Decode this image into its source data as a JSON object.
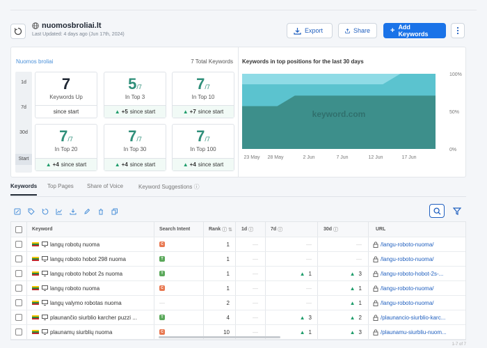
{
  "header": {
    "site": "nuomosbroliai.lt",
    "updated": "Last Updated: 4 days ago (Jun 17th, 2024)",
    "export_label": "Export",
    "share_label": "Share",
    "add_label": "Add Keywords"
  },
  "stats": {
    "domain": "Nuomos broliai",
    "total": "7 Total Keywords",
    "periods": [
      "1d",
      "7d",
      "30d",
      "Start"
    ],
    "cards": [
      {
        "value": "7",
        "frac": "",
        "label": "Keywords Up",
        "foot_delta": "",
        "foot_text": "since start"
      },
      {
        "value": "5",
        "frac": "/7",
        "label": "In Top 3",
        "foot_delta": "+5",
        "foot_text": "since start"
      },
      {
        "value": "7",
        "frac": "/7",
        "label": "In Top 10",
        "foot_delta": "+7",
        "foot_text": "since start"
      },
      {
        "value": "7",
        "frac": "/7",
        "label": "In Top 20",
        "foot_delta": "+4",
        "foot_text": "since start"
      },
      {
        "value": "7",
        "frac": "/7",
        "label": "In Top 30",
        "foot_delta": "+4",
        "foot_text": "since start"
      },
      {
        "value": "7",
        "frac": "/7",
        "label": "In Top 100",
        "foot_delta": "+4",
        "foot_text": "since start"
      }
    ]
  },
  "chart": {
    "title": "Keywords in top positions for the last 30 days",
    "watermark": "keyword.com",
    "y_ticks": [
      "100%",
      "50%",
      "0%"
    ],
    "x_ticks": [
      "23 May",
      "28 May",
      "2 Jun",
      "7 Jun",
      "12 Jun",
      "17 Jun"
    ],
    "colors": {
      "top3": "#3d8f8b",
      "top10": "#5bc3cf",
      "top100": "#8fdbe6"
    }
  },
  "chart_data": {
    "type": "area",
    "title": "Keywords in top positions for the last 30 days",
    "x": [
      "21 May",
      "23 May",
      "25 May",
      "26 May",
      "28 May",
      "2 Jun",
      "7 Jun",
      "12 Jun",
      "14 Jun",
      "15 Jun",
      "17 Jun",
      "20 Jun"
    ],
    "series": [
      {
        "name": "",
        "values": [
          57,
          57,
          57,
          71,
          71,
          71,
          71,
          71,
          71,
          71,
          71,
          71
        ]
      },
      {
        "name": "",
        "values": [
          86,
          86,
          86,
          86,
          86,
          86,
          86,
          86,
          86,
          100,
          100,
          100
        ]
      },
      {
        "name": "",
        "values": [
          100,
          100,
          100,
          100,
          100,
          100,
          100,
          100,
          100,
          100,
          100,
          100
        ]
      }
    ],
    "ylim": [
      0,
      100
    ],
    "ylabel": "",
    "xlabel": ""
  },
  "tabs": [
    "Keywords",
    "Top Pages",
    "Share of Voice",
    "Keyword Suggestions"
  ],
  "table": {
    "columns": {
      "keyword": "Keyword",
      "intent": "Search Intent",
      "rank": "Rank",
      "d1": "1d",
      "d7": "7d",
      "d30": "30d",
      "url": "URL"
    },
    "rows": [
      {
        "keyword": "langų robotų nuoma",
        "intent": "C",
        "intent_color": "#e8774f",
        "rank": "1",
        "d1": "—",
        "d7": "—",
        "d30": "—",
        "url": "/langu-roboto-nuoma/"
      },
      {
        "keyword": "langų roboto hobot 298 nuoma",
        "intent": "T",
        "intent_color": "#5aa85a",
        "rank": "1",
        "d1": "—",
        "d7": "—",
        "d30": "—",
        "url": "/langu-roboto-nuoma/"
      },
      {
        "keyword": "langų roboto hobot 2s nuoma",
        "intent": "T",
        "intent_color": "#5aa85a",
        "rank": "1",
        "d1": "—",
        "d7": "1",
        "d30": "3",
        "url": "/langu-roboto-hobot-2s-..."
      },
      {
        "keyword": "langų roboto nuoma",
        "intent": "C",
        "intent_color": "#e8774f",
        "rank": "1",
        "d1": "—",
        "d7": "—",
        "d30": "1",
        "url": "/langu-roboto-nuoma/"
      },
      {
        "keyword": "langų valymo robotas nuoma",
        "intent": "",
        "intent_color": "",
        "rank": "2",
        "d1": "—",
        "d7": "—",
        "d30": "1",
        "url": "/langu-roboto-nuoma/"
      },
      {
        "keyword": "plaunančio siurblio karcher puzzi ...",
        "intent": "T",
        "intent_color": "#5aa85a",
        "rank": "4",
        "d1": "—",
        "d7": "3",
        "d30": "2",
        "url": "/plaunancio-siurblio-karc..."
      },
      {
        "keyword": "plaunamų siurblių nuoma",
        "intent": "C",
        "intent_color": "#e8774f",
        "rank": "10",
        "d1": "—",
        "d7": "1",
        "d30": "3",
        "url": "/plaunamu-siurbliu-nuom..."
      }
    ]
  },
  "pager": "1-7 of 7"
}
